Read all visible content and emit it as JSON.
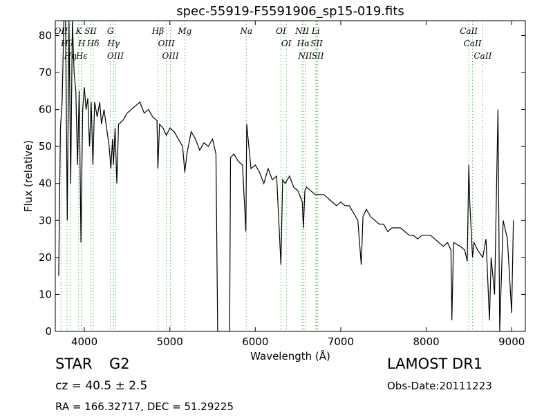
{
  "chart_data": {
    "type": "line",
    "title": "spec-55919-F5591906_sp15-019.fits",
    "xlabel": "Wavelength (Å)",
    "ylabel": "Flux (relative)",
    "color": "#000000",
    "line_color": "#55bb55",
    "xlim": [
      3660,
      9160
    ],
    "ylim": [
      0,
      84
    ],
    "xticks": [
      4000,
      5000,
      6000,
      7000,
      8000,
      9000
    ],
    "yticks": [
      0,
      10,
      20,
      30,
      40,
      50,
      60,
      70,
      80
    ],
    "x": [
      3700,
      3720,
      3740,
      3760,
      3780,
      3800,
      3820,
      3840,
      3860,
      3880,
      3900,
      3920,
      3940,
      3960,
      3980,
      4000,
      4020,
      4040,
      4060,
      4080,
      4100,
      4120,
      4150,
      4180,
      4200,
      4230,
      4260,
      4290,
      4310,
      4330,
      4340,
      4360,
      4380,
      4400,
      4450,
      4500,
      4550,
      4600,
      4650,
      4700,
      4750,
      4800,
      4850,
      4860,
      4880,
      4920,
      4960,
      5000,
      5050,
      5100,
      5150,
      5175,
      5200,
      5250,
      5300,
      5350,
      5400,
      5450,
      5500,
      5540,
      5560,
      5700,
      5710,
      5750,
      5800,
      5850,
      5890,
      5900,
      5950,
      6000,
      6050,
      6100,
      6150,
      6200,
      6250,
      6300,
      6320,
      6350,
      6400,
      6450,
      6500,
      6550,
      6563,
      6580,
      6600,
      6650,
      6700,
      6750,
      6800,
      6850,
      6900,
      6950,
      7000,
      7050,
      7100,
      7150,
      7200,
      7240,
      7260,
      7300,
      7350,
      7400,
      7450,
      7500,
      7550,
      7600,
      7650,
      7700,
      7750,
      7800,
      7850,
      7900,
      7950,
      8000,
      8050,
      8100,
      8150,
      8200,
      8250,
      8290,
      8300,
      8320,
      8400,
      8450,
      8480,
      8498,
      8510,
      8542,
      8560,
      8600,
      8662,
      8700,
      8740,
      8760,
      8800,
      8840,
      8860,
      8900,
      8950,
      9000,
      9020
    ],
    "values": [
      15,
      55,
      62,
      84,
      84,
      30,
      84,
      40,
      84,
      70,
      65,
      45,
      65,
      24,
      60,
      66,
      60,
      63,
      50,
      62,
      45,
      62,
      58,
      62,
      56,
      60,
      55,
      50,
      44,
      52,
      45,
      55,
      40,
      56,
      57,
      59,
      60,
      61,
      62,
      59,
      60,
      58,
      57,
      44,
      56,
      55,
      53,
      55,
      54,
      52,
      50,
      43,
      48,
      54,
      52,
      49,
      51,
      50,
      52,
      48,
      0,
      0,
      47,
      48,
      46,
      45,
      27,
      56,
      44,
      45,
      43,
      40,
      44,
      41,
      42,
      18,
      41,
      40,
      42,
      39,
      38,
      35,
      28,
      38,
      39,
      38,
      37,
      37,
      37,
      36,
      35,
      34,
      35,
      34,
      34,
      32,
      30,
      18,
      31,
      33,
      31,
      30,
      29,
      29,
      27,
      28,
      28,
      28,
      27,
      26,
      26,
      25,
      26,
      26,
      26,
      25,
      24,
      23,
      24,
      22,
      3,
      24,
      23,
      22,
      19,
      45,
      35,
      20,
      24,
      22,
      20,
      25,
      3,
      20,
      10,
      60,
      0,
      30,
      25,
      5,
      30
    ],
    "lines": [
      {
        "label": "OII",
        "x": 3727
      },
      {
        "label": "Hθ",
        "x": 3797
      },
      {
        "label": "Hη",
        "x": 3835
      },
      {
        "label": "K",
        "x": 3934
      },
      {
        "label": "H",
        "x": 3969
      },
      {
        "label": "Hε",
        "x": 3970
      },
      {
        "label": "SII",
        "x": 4072
      },
      {
        "label": "Hδ",
        "x": 4102
      },
      {
        "label": "G",
        "x": 4304
      },
      {
        "label": "Hγ",
        "x": 4341
      },
      {
        "label": "OIII",
        "x": 4363
      },
      {
        "label": "Hβ",
        "x": 4861
      },
      {
        "label": "OIII",
        "x": 4959
      },
      {
        "label": "OIII",
        "x": 5007
      },
      {
        "label": "Mg",
        "x": 5175
      },
      {
        "label": "Na",
        "x": 5894
      },
      {
        "label": "OI",
        "x": 6300
      },
      {
        "label": "OI",
        "x": 6363
      },
      {
        "label": "NII",
        "x": 6548
      },
      {
        "label": "Hα",
        "x": 6563
      },
      {
        "label": "NII",
        "x": 6583
      },
      {
        "label": "Li",
        "x": 6708
      },
      {
        "label": "SII",
        "x": 6717
      },
      {
        "label": "SII",
        "x": 6731
      },
      {
        "label": "CaII",
        "x": 8498
      },
      {
        "label": "CaII",
        "x": 8542
      },
      {
        "label": "CaII",
        "x": 8662
      }
    ],
    "info": {
      "class": "STAR",
      "subclass": "G2",
      "cz": "cz = 40.5  ± 2.5",
      "coords": "RA = 166.32717, DEC = 51.29225",
      "survey": "LAMOST DR1",
      "obs_date": "Obs-Date:20111223"
    }
  }
}
